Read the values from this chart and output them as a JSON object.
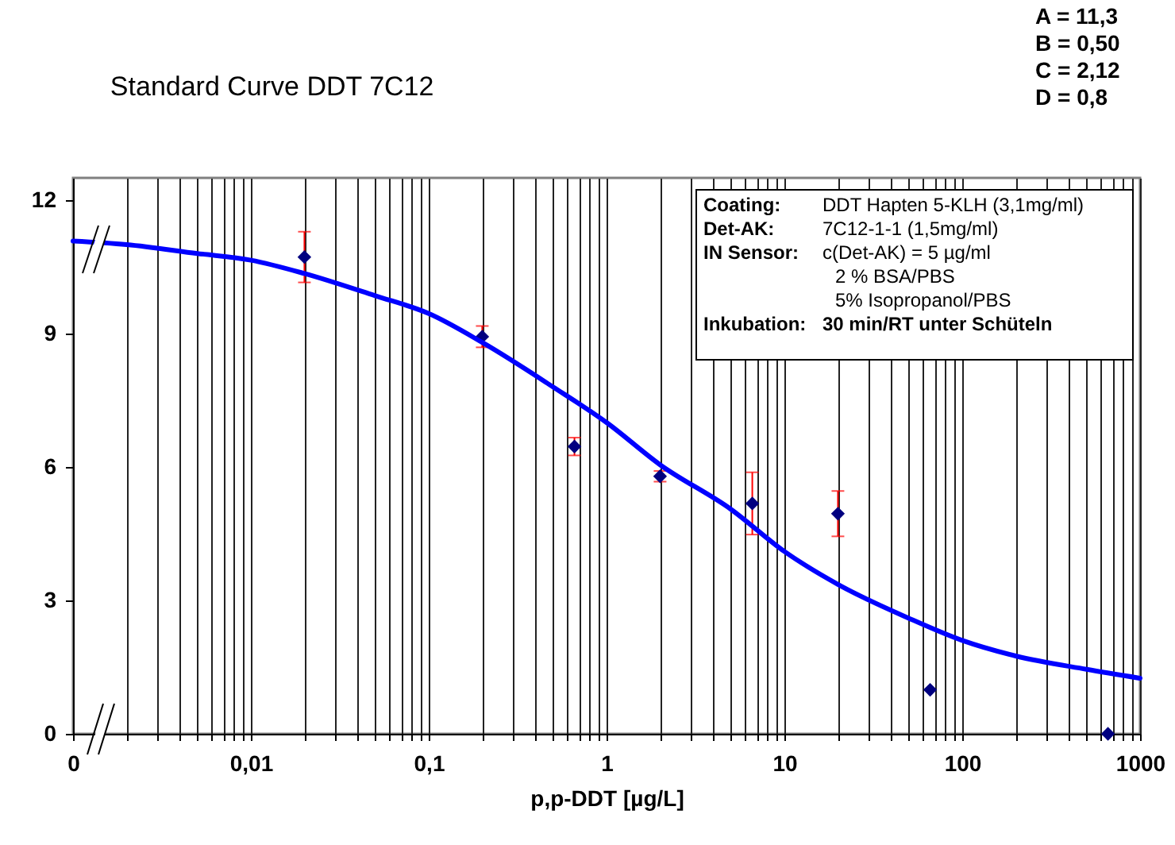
{
  "chart_data": {
    "type": "scatter",
    "title": "Standard Curve DDT 7C12",
    "xlabel": "p,p-DDT [µg/L]",
    "log": "x",
    "grid": "x",
    "xlim": [
      0.001,
      1000
    ],
    "ylim": [
      0,
      12.5
    ],
    "xticks": [
      {
        "value": 0.001,
        "label": "0"
      },
      {
        "value": 0.002,
        "label": null
      },
      {
        "value": 0.003,
        "label": null
      },
      {
        "value": 0.004,
        "label": null
      },
      {
        "value": 0.005,
        "label": null
      },
      {
        "value": 0.006,
        "label": null
      },
      {
        "value": 0.007,
        "label": null
      },
      {
        "value": 0.008,
        "label": null
      },
      {
        "value": 0.009,
        "label": null
      },
      {
        "value": 0.01,
        "label": "0,01"
      },
      {
        "value": 0.02,
        "label": null
      },
      {
        "value": 0.03,
        "label": null
      },
      {
        "value": 0.04,
        "label": null
      },
      {
        "value": 0.05,
        "label": null
      },
      {
        "value": 0.06,
        "label": null
      },
      {
        "value": 0.07,
        "label": null
      },
      {
        "value": 0.08,
        "label": null
      },
      {
        "value": 0.09,
        "label": null
      },
      {
        "value": 0.1,
        "label": "0,1"
      },
      {
        "value": 0.2,
        "label": null
      },
      {
        "value": 0.3,
        "label": null
      },
      {
        "value": 0.4,
        "label": null
      },
      {
        "value": 0.5,
        "label": null
      },
      {
        "value": 0.6,
        "label": null
      },
      {
        "value": 0.7,
        "label": null
      },
      {
        "value": 0.8,
        "label": null
      },
      {
        "value": 0.9,
        "label": null
      },
      1,
      {
        "value": 2,
        "label": null
      },
      {
        "value": 3,
        "label": null
      },
      {
        "value": 4,
        "label": null
      },
      {
        "value": 5,
        "label": null
      },
      {
        "value": 6,
        "label": null
      },
      {
        "value": 7,
        "label": null
      },
      {
        "value": 8,
        "label": null
      },
      {
        "value": 9,
        "label": null
      },
      10,
      {
        "value": 20,
        "label": null
      },
      {
        "value": 30,
        "label": null
      },
      {
        "value": 40,
        "label": null
      },
      {
        "value": 50,
        "label": null
      },
      {
        "value": 60,
        "label": null
      },
      {
        "value": 70,
        "label": null
      },
      {
        "value": 80,
        "label": null
      },
      {
        "value": 90,
        "label": null
      },
      100,
      {
        "value": 200,
        "label": null
      },
      {
        "value": 300,
        "label": null
      },
      {
        "value": 400,
        "label": null
      },
      {
        "value": 500,
        "label": null
      },
      {
        "value": 600,
        "label": null
      },
      {
        "value": 700,
        "label": null
      },
      {
        "value": 800,
        "label": null
      },
      {
        "value": 900,
        "label": null
      },
      1000
    ],
    "yticks": [
      0,
      3,
      6,
      9,
      12
    ],
    "annotations": [
      "A = 11,3",
      "B = 0,50",
      "C = 2,12",
      "D = 0,8",
      "Coating: DDT Hapten 5-KLH (3,1mg/ml)",
      "Det-AK: 7C12-1-1 (1,5mg/ml)",
      "IN Sensor: c(Det-AK) = 5 µg/ml",
      "2 % BSA/PBS",
      "5% Isopropanol/PBS",
      "Inkubation: 30 min/RT unter Schüteln"
    ],
    "series": [
      {
        "color": "#000080",
        "marker": "diamond",
        "x": [
          0.02,
          0.2,
          0.66,
          2,
          6.6,
          20,
          66,
          660
        ],
        "values": [
          10.72,
          8.93,
          6.46,
          5.79,
          5.18,
          4.95,
          0.99,
          0
        ],
        "errors": [
          0.57,
          0.24,
          0.2,
          0.12,
          0.7,
          0.51,
          null,
          null
        ]
      },
      {
        "type": "line",
        "marker": "none",
        "color": "#0000ff",
        "x": [
          0.001,
          0.002,
          0.005,
          0.01,
          0.02,
          0.05,
          0.1,
          0.2,
          0.5,
          1,
          2,
          5,
          10,
          20,
          50,
          100,
          200,
          500,
          1000
        ],
        "values": [
          11.08,
          11.0,
          10.8,
          10.65,
          10.35,
          9.85,
          9.45,
          8.8,
          7.8,
          7.0,
          6.05,
          5.05,
          4.1,
          3.36,
          2.6,
          2.1,
          1.75,
          1.45,
          1.25
        ]
      }
    ]
  }
}
